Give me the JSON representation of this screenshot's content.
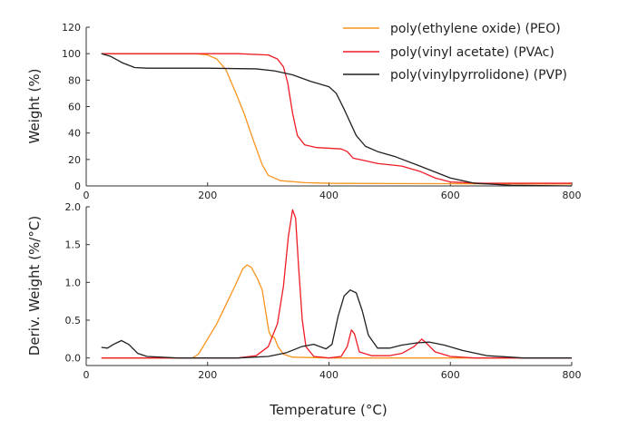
{
  "chart_data": [
    {
      "type": "line",
      "panel": "top",
      "ylabel": "Weight (%)",
      "xlabel": "",
      "xlim": [
        0,
        800
      ],
      "ylim": [
        0,
        120
      ],
      "xticks": [
        0,
        200,
        400,
        600,
        800
      ],
      "yticks": [
        0,
        20,
        40,
        60,
        80,
        100,
        120
      ],
      "grid": false,
      "legend": "top-right",
      "series": [
        {
          "name": "poly(ethylene oxide) (PEO)",
          "color": "#f7941d",
          "points": [
            [
              25,
              100
            ],
            [
              100,
              100
            ],
            [
              180,
              100
            ],
            [
              200,
              99
            ],
            [
              215,
              96
            ],
            [
              230,
              88
            ],
            [
              245,
              72
            ],
            [
              260,
              55
            ],
            [
              275,
              35
            ],
            [
              290,
              16
            ],
            [
              300,
              8
            ],
            [
              320,
              4
            ],
            [
              360,
              2.5
            ],
            [
              400,
              2
            ],
            [
              500,
              1.8
            ],
            [
              600,
              1.7
            ],
            [
              800,
              1.5
            ]
          ]
        },
        {
          "name": "poly(vinyl acetate) (PVAc)",
          "color": "#ee1c25",
          "points": [
            [
              25,
              100
            ],
            [
              250,
              100
            ],
            [
              300,
              99
            ],
            [
              315,
              96
            ],
            [
              325,
              90
            ],
            [
              332,
              78
            ],
            [
              340,
              55
            ],
            [
              348,
              38
            ],
            [
              360,
              31
            ],
            [
              380,
              29
            ],
            [
              420,
              28
            ],
            [
              430,
              26
            ],
            [
              440,
              21
            ],
            [
              460,
              19
            ],
            [
              480,
              17
            ],
            [
              520,
              15
            ],
            [
              550,
              11
            ],
            [
              575,
              6
            ],
            [
              600,
              3
            ],
            [
              650,
              2
            ],
            [
              800,
              2
            ]
          ]
        },
        {
          "name": "poly(vinylpyrrolidone) (PVP)",
          "color": "#231f20",
          "points": [
            [
              25,
              100
            ],
            [
              40,
              98
            ],
            [
              60,
              93
            ],
            [
              80,
              89.5
            ],
            [
              100,
              89
            ],
            [
              200,
              89
            ],
            [
              280,
              88.5
            ],
            [
              310,
              87
            ],
            [
              340,
              84
            ],
            [
              370,
              79
            ],
            [
              400,
              75
            ],
            [
              412,
              70
            ],
            [
              425,
              58
            ],
            [
              445,
              38
            ],
            [
              460,
              30
            ],
            [
              480,
              26
            ],
            [
              510,
              22
            ],
            [
              550,
              15
            ],
            [
              600,
              6
            ],
            [
              640,
              2
            ],
            [
              700,
              0.5
            ],
            [
              800,
              0
            ]
          ]
        }
      ]
    },
    {
      "type": "line",
      "panel": "bottom",
      "ylabel": "Deriv. Weight (%/°C)",
      "xlabel": "Temperature (°C)",
      "xlim": [
        0,
        800
      ],
      "ylim": [
        -0.1,
        2.0
      ],
      "xticks": [
        0,
        200,
        400,
        600,
        800
      ],
      "yticks": [
        0.0,
        0.5,
        1.0,
        1.5,
        2.0
      ],
      "ytick_labels": [
        "0.0",
        "0.5",
        "1.0",
        "1.5",
        "2.0"
      ],
      "grid": false,
      "series": [
        {
          "name": "poly(ethylene oxide) (PEO)",
          "color": "#f7941d",
          "points": [
            [
              25,
              0
            ],
            [
              175,
              0
            ],
            [
              185,
              0.05
            ],
            [
              200,
              0.25
            ],
            [
              215,
              0.45
            ],
            [
              230,
              0.7
            ],
            [
              245,
              0.95
            ],
            [
              258,
              1.18
            ],
            [
              265,
              1.23
            ],
            [
              272,
              1.2
            ],
            [
              282,
              1.05
            ],
            [
              290,
              0.9
            ],
            [
              296,
              0.6
            ],
            [
              301,
              0.35
            ],
            [
              305,
              0.28
            ],
            [
              310,
              0.27
            ],
            [
              316,
              0.15
            ],
            [
              325,
              0.05
            ],
            [
              340,
              0.01
            ],
            [
              400,
              0
            ],
            [
              800,
              0
            ]
          ]
        },
        {
          "name": "poly(vinyl acetate) (PVAc)",
          "color": "#ee1c25",
          "points": [
            [
              25,
              0
            ],
            [
              250,
              0
            ],
            [
              280,
              0.03
            ],
            [
              300,
              0.15
            ],
            [
              315,
              0.45
            ],
            [
              325,
              0.95
            ],
            [
              333,
              1.6
            ],
            [
              340,
              1.96
            ],
            [
              345,
              1.85
            ],
            [
              350,
              1.2
            ],
            [
              356,
              0.5
            ],
            [
              362,
              0.15
            ],
            [
              375,
              0.02
            ],
            [
              400,
              0
            ],
            [
              420,
              0.02
            ],
            [
              430,
              0.15
            ],
            [
              437,
              0.37
            ],
            [
              442,
              0.32
            ],
            [
              450,
              0.08
            ],
            [
              470,
              0.03
            ],
            [
              500,
              0.03
            ],
            [
              520,
              0.06
            ],
            [
              540,
              0.15
            ],
            [
              553,
              0.25
            ],
            [
              560,
              0.2
            ],
            [
              575,
              0.08
            ],
            [
              600,
              0.02
            ],
            [
              640,
              0
            ],
            [
              800,
              0
            ]
          ]
        },
        {
          "name": "poly(vinylpyrrolidone) (PVP)",
          "color": "#231f20",
          "points": [
            [
              25,
              0.14
            ],
            [
              35,
              0.13
            ],
            [
              45,
              0.18
            ],
            [
              58,
              0.23
            ],
            [
              70,
              0.18
            ],
            [
              85,
              0.06
            ],
            [
              100,
              0.02
            ],
            [
              150,
              0
            ],
            [
              250,
              0
            ],
            [
              300,
              0.02
            ],
            [
              330,
              0.07
            ],
            [
              355,
              0.15
            ],
            [
              375,
              0.18
            ],
            [
              395,
              0.12
            ],
            [
              405,
              0.18
            ],
            [
              415,
              0.55
            ],
            [
              425,
              0.82
            ],
            [
              435,
              0.9
            ],
            [
              445,
              0.86
            ],
            [
              455,
              0.62
            ],
            [
              465,
              0.3
            ],
            [
              480,
              0.13
            ],
            [
              500,
              0.13
            ],
            [
              520,
              0.17
            ],
            [
              545,
              0.2
            ],
            [
              565,
              0.21
            ],
            [
              590,
              0.17
            ],
            [
              620,
              0.1
            ],
            [
              660,
              0.03
            ],
            [
              700,
              0.01
            ],
            [
              720,
              0
            ],
            [
              800,
              0
            ]
          ]
        }
      ]
    }
  ]
}
